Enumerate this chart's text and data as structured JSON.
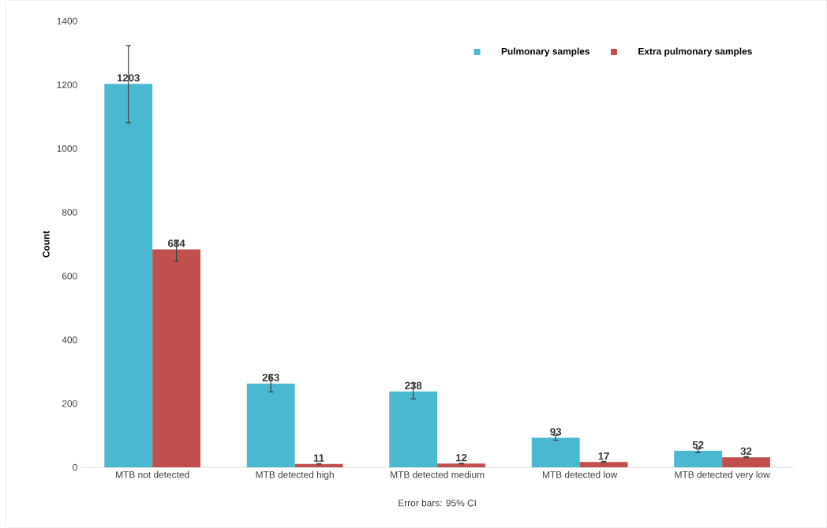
{
  "chart_data": {
    "type": "bar",
    "ylabel": "Count",
    "categories": [
      "MTB not detected",
      "MTB detected high",
      "MTB detected medium",
      "MTB detected low",
      "MTB detected very low"
    ],
    "series": [
      {
        "name": "Pulmonary samples",
        "color": "#4bb8d2",
        "values": [
          1203,
          263,
          238,
          93,
          52
        ],
        "errors": [
          [
            1081,
            1323
          ],
          [
            237,
            291
          ],
          [
            215,
            264
          ],
          [
            85,
            101
          ],
          [
            46,
            58
          ]
        ]
      },
      {
        "name": "Extra pulmonary samples",
        "color": "#c0504d",
        "values": [
          684,
          11,
          12,
          17,
          32
        ],
        "errors": [
          [
            647,
            713
          ],
          [
            10,
            12
          ],
          [
            11,
            13
          ],
          [
            15,
            19
          ],
          [
            30,
            34
          ]
        ]
      }
    ],
    "ylim": [
      0,
      1400
    ],
    "yticks": [
      0,
      200,
      400,
      600,
      800,
      1000,
      1200,
      1400
    ],
    "data_labels": true,
    "legend": "top right",
    "grid": false,
    "annotations": [
      "Error bars: 95% CI"
    ]
  }
}
